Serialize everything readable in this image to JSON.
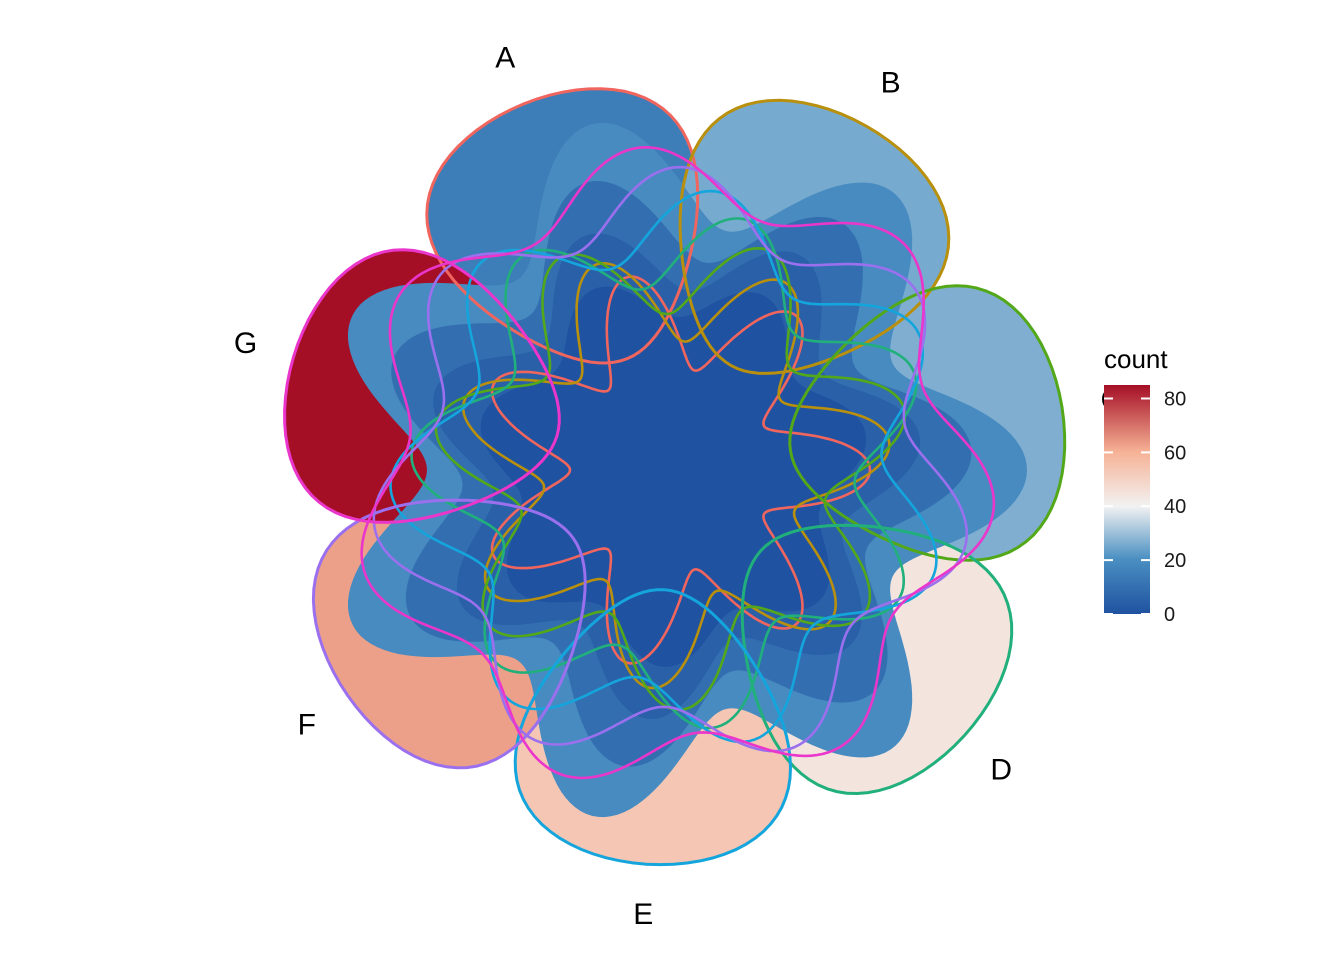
{
  "legend": {
    "title": "count",
    "ticks": [
      "0",
      "20",
      "40",
      "60",
      "80"
    ],
    "scale_min": 0,
    "scale_max": 85,
    "colors": [
      "#1f52a0",
      "#4a8fc2",
      "#f2f2f2",
      "#f6b195",
      "#a50f26"
    ]
  },
  "sets": [
    {
      "label": "A",
      "color": "#f0665e"
    },
    {
      "label": "B",
      "color": "#b8900e"
    },
    {
      "label": "C",
      "color": "#53a81a"
    },
    {
      "label": "D",
      "color": "#21b07c"
    },
    {
      "label": "E",
      "color": "#15a5dd"
    },
    {
      "label": "F",
      "color": "#9b70ee"
    },
    {
      "label": "G",
      "color": "#ea36cb"
    }
  ],
  "region_counts": {
    "only_A": 15,
    "only_B": 27,
    "only_C": 28,
    "only_D": 47,
    "only_E": 57,
    "only_F": 66,
    "only_G": 85,
    "outer_ring": 20,
    "middle_ring": 10,
    "inner_ring": 5,
    "core": 0
  }
}
